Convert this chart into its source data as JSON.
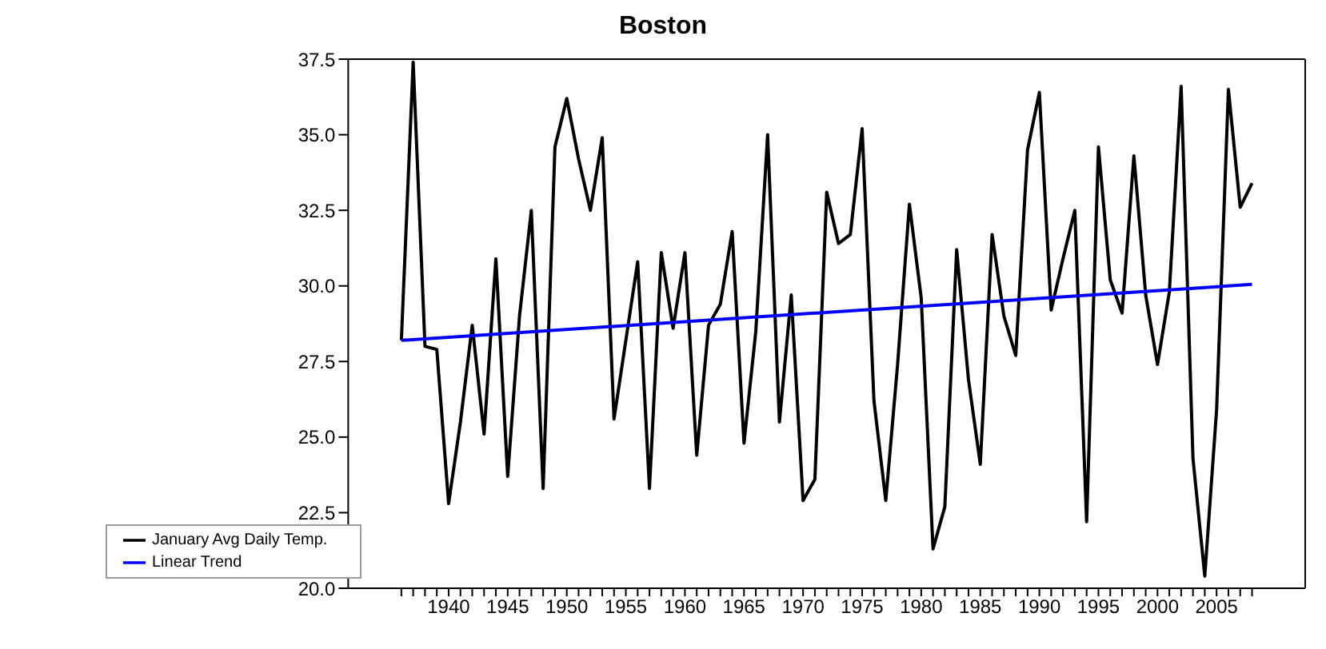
{
  "chart_data": {
    "type": "line",
    "title": "Boston",
    "xlim": [
      1931.5,
      2012.5
    ],
    "xticks": [
      {
        "value": 1936,
        "label": null
      },
      {
        "value": 1937,
        "label": null
      },
      {
        "value": 1938,
        "label": null
      },
      {
        "value": 1939,
        "label": null
      },
      1940,
      {
        "value": 1941,
        "label": null
      },
      {
        "value": 1942,
        "label": null
      },
      {
        "value": 1943,
        "label": null
      },
      {
        "value": 1944,
        "label": null
      },
      1945,
      {
        "value": 1946,
        "label": null
      },
      {
        "value": 1947,
        "label": null
      },
      {
        "value": 1948,
        "label": null
      },
      {
        "value": 1949,
        "label": null
      },
      1950,
      {
        "value": 1951,
        "label": null
      },
      {
        "value": 1952,
        "label": null
      },
      {
        "value": 1953,
        "label": null
      },
      {
        "value": 1954,
        "label": null
      },
      1955,
      {
        "value": 1956,
        "label": null
      },
      {
        "value": 1957,
        "label": null
      },
      {
        "value": 1958,
        "label": null
      },
      {
        "value": 1959,
        "label": null
      },
      1960,
      {
        "value": 1961,
        "label": null
      },
      {
        "value": 1962,
        "label": null
      },
      {
        "value": 1963,
        "label": null
      },
      {
        "value": 1964,
        "label": null
      },
      1965,
      {
        "value": 1966,
        "label": null
      },
      {
        "value": 1967,
        "label": null
      },
      {
        "value": 1968,
        "label": null
      },
      {
        "value": 1969,
        "label": null
      },
      1970,
      {
        "value": 1971,
        "label": null
      },
      {
        "value": 1972,
        "label": null
      },
      {
        "value": 1973,
        "label": null
      },
      {
        "value": 1974,
        "label": null
      },
      1975,
      {
        "value": 1976,
        "label": null
      },
      {
        "value": 1977,
        "label": null
      },
      {
        "value": 1978,
        "label": null
      },
      {
        "value": 1979,
        "label": null
      },
      1980,
      {
        "value": 1981,
        "label": null
      },
      {
        "value": 1982,
        "label": null
      },
      {
        "value": 1983,
        "label": null
      },
      {
        "value": 1984,
        "label": null
      },
      1985,
      {
        "value": 1986,
        "label": null
      },
      {
        "value": 1987,
        "label": null
      },
      {
        "value": 1988,
        "label": null
      },
      {
        "value": 1989,
        "label": null
      },
      1990,
      {
        "value": 1991,
        "label": null
      },
      {
        "value": 1992,
        "label": null
      },
      {
        "value": 1993,
        "label": null
      },
      {
        "value": 1994,
        "label": null
      },
      1995,
      {
        "value": 1996,
        "label": null
      },
      {
        "value": 1997,
        "label": null
      },
      {
        "value": 1998,
        "label": null
      },
      {
        "value": 1999,
        "label": null
      },
      2000,
      {
        "value": 2001,
        "label": null
      },
      {
        "value": 2002,
        "label": null
      },
      {
        "value": 2003,
        "label": null
      },
      {
        "value": 2004,
        "label": null
      },
      2005,
      {
        "value": 2006,
        "label": null
      },
      {
        "value": 2007,
        "label": null
      },
      {
        "value": 2008,
        "label": null
      }
    ],
    "ylim": [
      20,
      37.5
    ],
    "yticks": [
      {
        "value": 20,
        "label": "20.0"
      },
      {
        "value": 22.5,
        "label": "22.5"
      },
      {
        "value": 25,
        "label": "25.0"
      },
      {
        "value": 27.5,
        "label": "27.5"
      },
      {
        "value": 30,
        "label": "30.0"
      },
      {
        "value": 32.5,
        "label": "32.5"
      },
      {
        "value": 35,
        "label": "35.0"
      },
      {
        "value": 37.5,
        "label": "37.5"
      }
    ],
    "x": [
      1936,
      1937,
      1938,
      1939,
      1940,
      1941,
      1942,
      1943,
      1944,
      1945,
      1946,
      1947,
      1948,
      1949,
      1950,
      1951,
      1952,
      1953,
      1954,
      1955,
      1956,
      1957,
      1958,
      1959,
      1960,
      1961,
      1962,
      1963,
      1964,
      1965,
      1966,
      1967,
      1968,
      1969,
      1970,
      1971,
      1972,
      1973,
      1974,
      1975,
      1976,
      1977,
      1978,
      1979,
      1980,
      1981,
      1982,
      1983,
      1984,
      1985,
      1986,
      1987,
      1988,
      1989,
      1990,
      1991,
      1992,
      1993,
      1994,
      1995,
      1996,
      1997,
      1998,
      1999,
      2000,
      2001,
      2002,
      2003,
      2004,
      2005,
      2006,
      2007,
      2008
    ],
    "series": [
      {
        "name": "January Avg Daily Temp.",
        "color": "#000000",
        "values": [
          28.2,
          37.4,
          28.0,
          27.9,
          22.8,
          25.5,
          28.7,
          25.1,
          30.9,
          23.7,
          29.0,
          32.5,
          23.3,
          34.6,
          36.2,
          34.2,
          32.5,
          34.9,
          25.6,
          28.2,
          30.8,
          23.3,
          31.1,
          28.6,
          31.1,
          24.4,
          28.7,
          29.4,
          31.8,
          24.8,
          28.5,
          35.0,
          25.5,
          29.7,
          22.9,
          23.6,
          33.1,
          31.4,
          31.7,
          35.2,
          26.2,
          22.9,
          27.4,
          32.7,
          29.6,
          21.3,
          22.7,
          31.2,
          26.9,
          24.1,
          31.7,
          29.0,
          27.7,
          34.5,
          36.4,
          29.2,
          30.9,
          32.5,
          22.2,
          34.6,
          30.2,
          29.1,
          34.3,
          29.7,
          27.4,
          29.8,
          36.6,
          24.3,
          20.4,
          25.9,
          36.5,
          32.6,
          33.4
        ]
      },
      {
        "name": "Linear Trend",
        "type": "line",
        "color": "#0000ff",
        "x": [
          1936,
          2008
        ],
        "values": [
          28.2,
          30.05
        ]
      }
    ],
    "legend": "bottom left",
    "grid": false,
    "marker": "none",
    "line_style": "solid"
  }
}
